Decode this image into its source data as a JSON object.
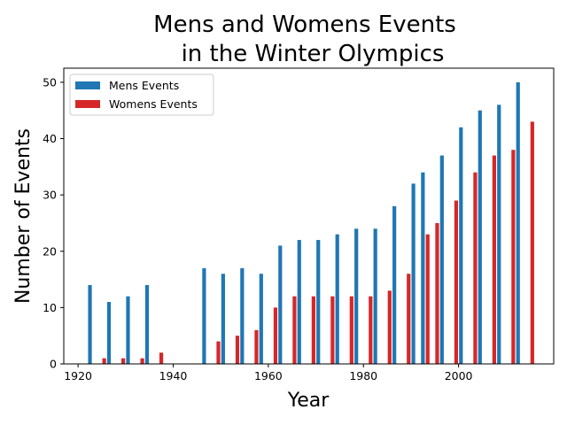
{
  "chart_data": {
    "type": "bar",
    "title_lines": [
      "Mens and Womens Events",
      "in the Winter Olympics"
    ],
    "xlabel": "Year",
    "ylabel": "Number of Events",
    "xlim": [
      1917,
      2020
    ],
    "ylim": [
      0,
      52.5
    ],
    "xticks": [
      1920,
      1940,
      1960,
      1980,
      2000
    ],
    "yticks": [
      0,
      10,
      20,
      30,
      40,
      50
    ],
    "legend_position": "upper-left",
    "grid": false,
    "x": [
      1924,
      1928,
      1932,
      1936,
      1948,
      1952,
      1956,
      1960,
      1964,
      1968,
      1972,
      1976,
      1980,
      1984,
      1988,
      1992,
      1994,
      1998,
      2002,
      2006,
      2010,
      2014
    ],
    "series": [
      {
        "name": "Mens Events",
        "color": "#1f77b4",
        "values": [
          14,
          11,
          12,
          14,
          17,
          16,
          17,
          16,
          21,
          22,
          22,
          23,
          24,
          24,
          28,
          32,
          34,
          37,
          42,
          45,
          46,
          50
        ]
      },
      {
        "name": "Womens Events",
        "color": "#d62728",
        "values": [
          1,
          1,
          1,
          2,
          4,
          5,
          6,
          10,
          12,
          12,
          12,
          12,
          12,
          13,
          16,
          23,
          25,
          29,
          34,
          37,
          38,
          43
        ]
      }
    ]
  }
}
